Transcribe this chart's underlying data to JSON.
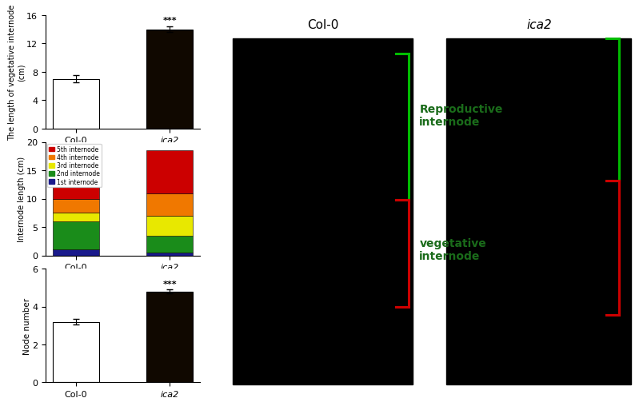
{
  "chart1": {
    "categories": [
      "Col-0",
      "ica2"
    ],
    "values": [
      7.0,
      14.0
    ],
    "errors": [
      0.5,
      0.4
    ],
    "bar_colors": [
      "white",
      "#100800"
    ],
    "ylabel": "The length of vegetative internode\n(cm)",
    "ylim": [
      0,
      16
    ],
    "yticks": [
      0,
      4,
      8,
      12,
      16
    ],
    "sig_label": "***"
  },
  "chart2": {
    "categories": [
      "Col-0",
      "ica2"
    ],
    "segment_names": [
      "1st internode",
      "2nd internode",
      "3rd internode",
      "4th internode",
      "5th internode"
    ],
    "segment_colors": [
      "#1a1a8c",
      "#1a8c1a",
      "#e8e800",
      "#f07800",
      "#cc0000"
    ],
    "col0_vals": [
      1.0,
      5.0,
      1.5,
      2.5,
      2.0
    ],
    "ica2_vals": [
      0.5,
      3.0,
      3.5,
      4.0,
      7.5
    ],
    "ylabel": "Internode length (cm)",
    "ylim": [
      0,
      20
    ],
    "yticks": [
      0,
      5,
      10,
      15,
      20
    ]
  },
  "chart3": {
    "categories": [
      "Col-0",
      "ica2"
    ],
    "values": [
      3.2,
      4.8
    ],
    "errors": [
      0.15,
      0.1
    ],
    "bar_colors": [
      "white",
      "#100800"
    ],
    "ylabel": "Node number",
    "ylim": [
      0,
      6
    ],
    "yticks": [
      0,
      2,
      4,
      6
    ],
    "sig_label": "***"
  },
  "photo": {
    "col0_label": "Col-0",
    "ica2_label": "ica2",
    "repro_label": "Reproductive\ninternode",
    "veg_label": "vegetative\ninternode",
    "bg_color": "#000000",
    "green_color": "#00bb00",
    "red_color": "#cc0000",
    "label_color": "#1a6b1a"
  },
  "edge_color": "black"
}
